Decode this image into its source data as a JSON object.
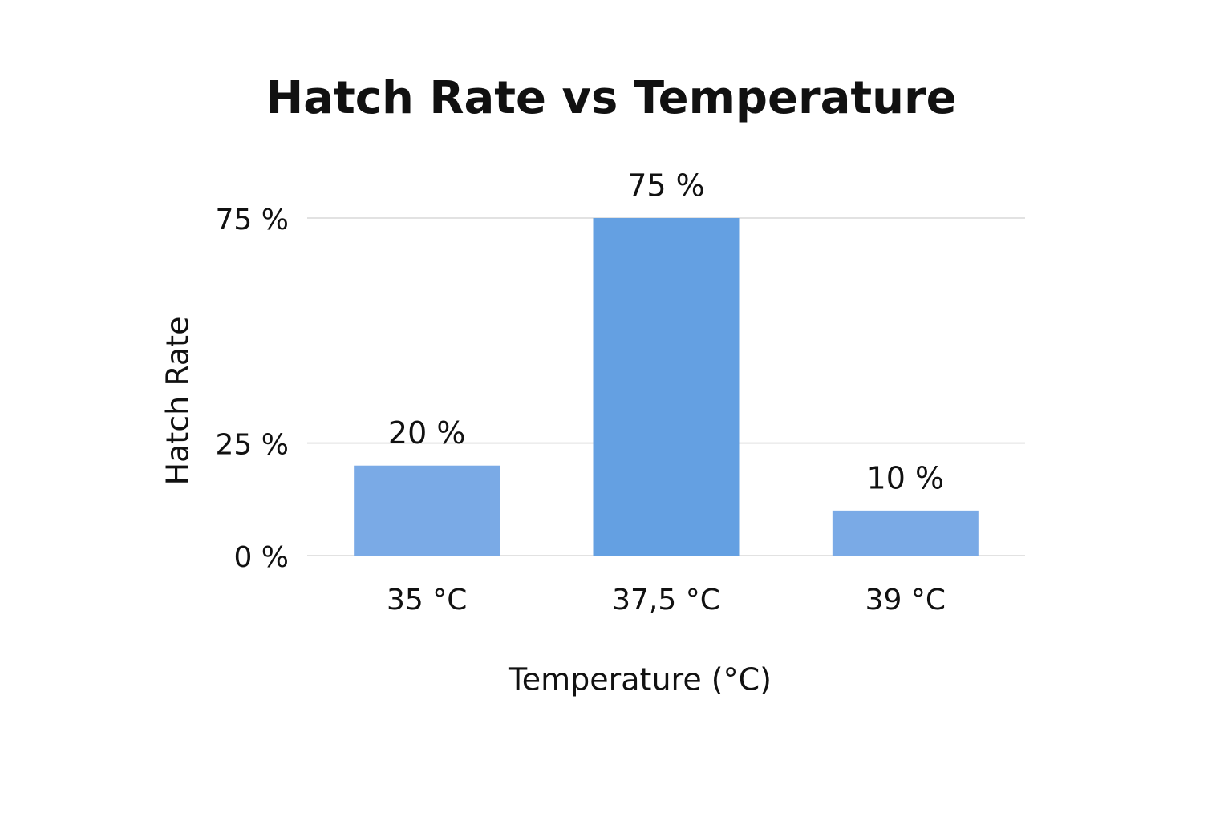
{
  "chart_data": {
    "type": "bar",
    "title": "Hatch Rate vs Temperature",
    "x_label": "Temperature (°C)",
    "y_label": "Hatch Rate",
    "categories": [
      "35 °C",
      "37,5 °C",
      "39 °C"
    ],
    "values": [
      20,
      75,
      10
    ],
    "value_labels": [
      "20 %",
      "75 %",
      "10 %"
    ],
    "colors": [
      "#7aaae6",
      "#64a0e2",
      "#7aaae6"
    ],
    "ylim": [
      0,
      75
    ],
    "yticks": [
      {
        "value": 0,
        "label": "0 %"
      },
      {
        "value": 25,
        "label": "25 %"
      },
      {
        "value": 75,
        "label": "75 %"
      }
    ],
    "grid": true
  }
}
